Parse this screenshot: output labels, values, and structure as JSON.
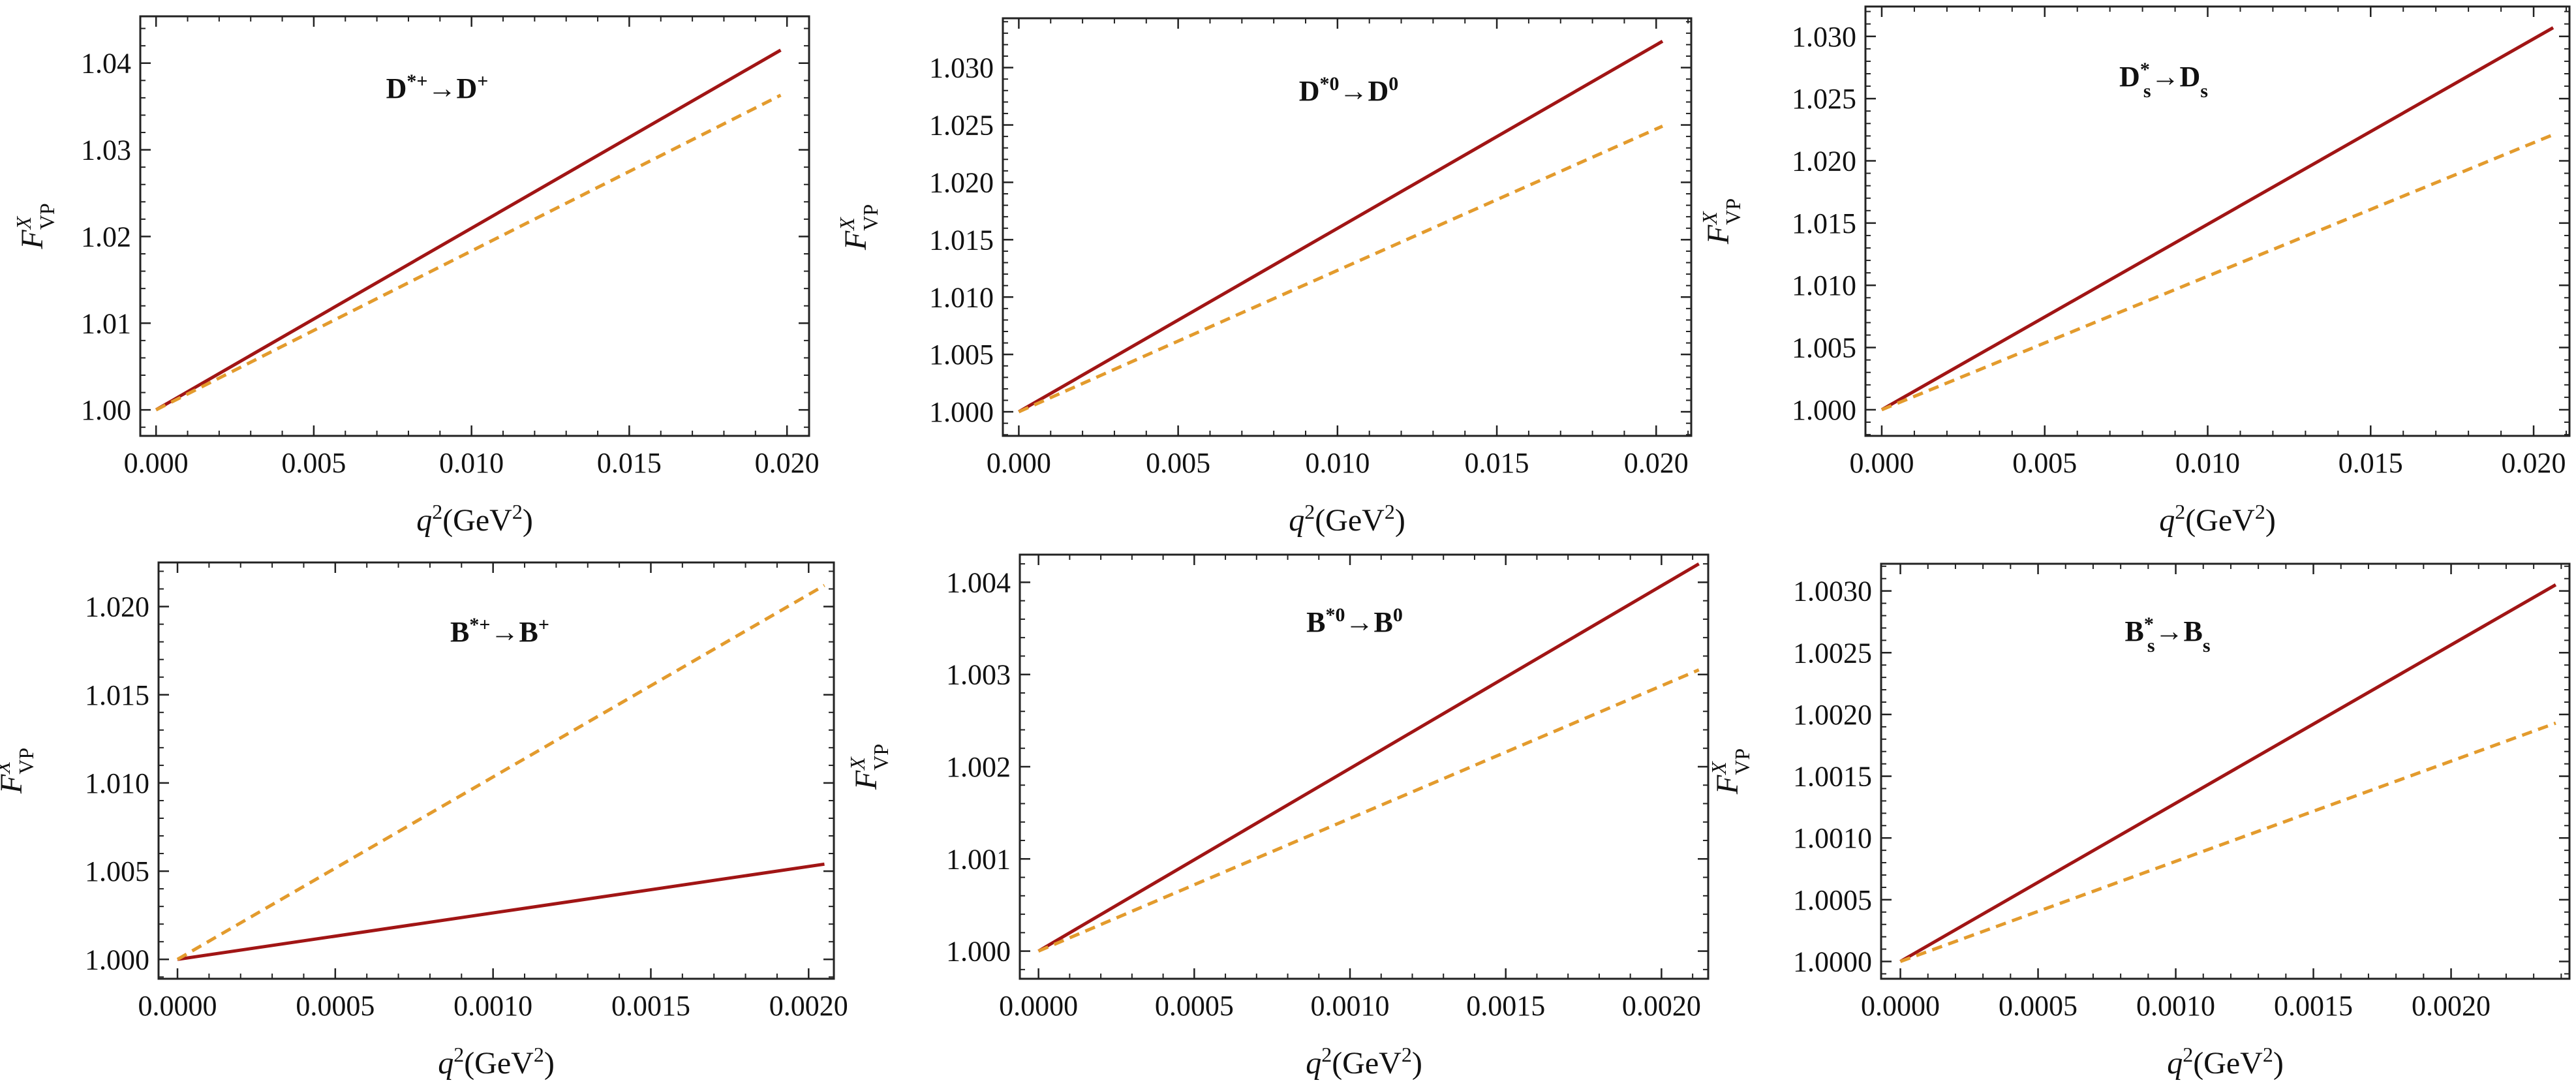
{
  "colors": {
    "solid": "#a11515",
    "dashed": "#e39b2d"
  },
  "chart_data": [
    {
      "type": "line",
      "title_parts": [
        "D",
        "*+",
        "",
        "→D",
        "+",
        ""
      ],
      "xlabel": "q²(GeV²)",
      "ylabel": "F_VP^X",
      "xlim": [
        -0.0005,
        0.0207
      ],
      "ylim": [
        0.997,
        1.0454
      ],
      "xticks": [
        0.0,
        0.005,
        0.01,
        0.015,
        0.02
      ],
      "xtick_labels": [
        "0.000",
        "0.005",
        "0.010",
        "0.015",
        "0.020"
      ],
      "yticks": [
        1.0,
        1.01,
        1.02,
        1.03,
        1.04
      ],
      "ytick_labels": [
        "1.00",
        "1.01",
        "1.02",
        "1.03",
        "1.04"
      ],
      "series": [
        {
          "name": "solid",
          "style": "solid",
          "x": [
            0.0,
            0.0198
          ],
          "y": [
            1.0,
            1.0415
          ]
        },
        {
          "name": "dashed",
          "style": "dashed",
          "x": [
            0.0,
            0.0198
          ],
          "y": [
            1.0,
            1.0363
          ]
        }
      ]
    },
    {
      "type": "line",
      "title_parts": [
        "D",
        "*0",
        "",
        "→D",
        "0",
        ""
      ],
      "xlabel": "q²(GeV²)",
      "ylabel": "F_VP^X",
      "xlim": [
        -0.0005,
        0.0211
      ],
      "ylim": [
        0.9979,
        1.0343
      ],
      "xticks": [
        0.0,
        0.005,
        0.01,
        0.015,
        0.02
      ],
      "xtick_labels": [
        "0.000",
        "0.005",
        "0.010",
        "0.015",
        "0.020"
      ],
      "yticks": [
        1.0,
        1.005,
        1.01,
        1.015,
        1.02,
        1.025,
        1.03
      ],
      "ytick_labels": [
        "1.000",
        "1.005",
        "1.010",
        "1.015",
        "1.020",
        "1.025",
        "1.030"
      ],
      "series": [
        {
          "name": "solid",
          "style": "solid",
          "x": [
            0.0,
            0.0202
          ],
          "y": [
            1.0,
            1.0323
          ]
        },
        {
          "name": "dashed",
          "style": "dashed",
          "x": [
            0.0,
            0.0202
          ],
          "y": [
            1.0,
            1.0249
          ]
        }
      ]
    },
    {
      "type": "line",
      "title_parts": [
        "D",
        "*",
        "s",
        "→D",
        "",
        "s"
      ],
      "xlabel": "q²(GeV²)",
      "ylabel": "F_VP^X",
      "xlim": [
        -0.0005,
        0.0211
      ],
      "ylim": [
        0.9979,
        1.0324
      ],
      "xticks": [
        0.0,
        0.005,
        0.01,
        0.015,
        0.02
      ],
      "xtick_labels": [
        "0.000",
        "0.005",
        "0.010",
        "0.015",
        "0.020"
      ],
      "yticks": [
        1.0,
        1.005,
        1.01,
        1.015,
        1.02,
        1.025,
        1.03
      ],
      "ytick_labels": [
        "1.000",
        "1.005",
        "1.010",
        "1.015",
        "1.020",
        "1.025",
        "1.030"
      ],
      "series": [
        {
          "name": "solid",
          "style": "solid",
          "x": [
            0.0,
            0.0206
          ],
          "y": [
            1.0,
            1.0307
          ]
        },
        {
          "name": "dashed",
          "style": "dashed",
          "x": [
            0.0,
            0.0206
          ],
          "y": [
            1.0,
            1.0221
          ]
        }
      ]
    },
    {
      "type": "line",
      "title_parts": [
        "B",
        "*+",
        "",
        "→B",
        "+",
        ""
      ],
      "xlabel": "q²(GeV²)",
      "ylabel": "F_VP^X",
      "xlim": [
        -6e-05,
        0.00208
      ],
      "ylim": [
        0.9989,
        1.0225
      ],
      "xticks": [
        0.0,
        0.0005,
        0.001,
        0.0015,
        0.002
      ],
      "xtick_labels": [
        "0.0000",
        "0.0005",
        "0.0010",
        "0.0015",
        "0.0020"
      ],
      "yticks": [
        1.0,
        1.005,
        1.01,
        1.015,
        1.02
      ],
      "ytick_labels": [
        "1.000",
        "1.005",
        "1.010",
        "1.015",
        "1.020"
      ],
      "series": [
        {
          "name": "solid",
          "style": "solid",
          "x": [
            0.0,
            0.00205
          ],
          "y": [
            1.0,
            1.0054
          ]
        },
        {
          "name": "dashed",
          "style": "dashed",
          "x": [
            0.0,
            0.00205
          ],
          "y": [
            1.0,
            1.0212
          ]
        }
      ]
    },
    {
      "type": "line",
      "title_parts": [
        "B",
        "*0",
        "",
        "→B",
        "0",
        ""
      ],
      "xlabel": "q²(GeV²)",
      "ylabel": "F_VP^X",
      "xlim": [
        -6e-05,
        0.00215
      ],
      "ylim": [
        0.9997,
        1.0043
      ],
      "xticks": [
        0.0,
        0.0005,
        0.001,
        0.0015,
        0.002
      ],
      "xtick_labels": [
        "0.0000",
        "0.0005",
        "0.0010",
        "0.0015",
        "0.0020"
      ],
      "yticks": [
        1.0,
        1.001,
        1.002,
        1.003,
        1.004
      ],
      "ytick_labels": [
        "1.000",
        "1.001",
        "1.002",
        "1.003",
        "1.004"
      ],
      "series": [
        {
          "name": "solid",
          "style": "solid",
          "x": [
            0.0,
            0.00212
          ],
          "y": [
            1.0,
            1.0042
          ]
        },
        {
          "name": "dashed",
          "style": "dashed",
          "x": [
            0.0,
            0.00212
          ],
          "y": [
            1.0,
            1.00305
          ]
        }
      ]
    },
    {
      "type": "line",
      "title_parts": [
        "B",
        "*",
        "s",
        "→B",
        "",
        "s"
      ],
      "xlabel": "q²(GeV²)",
      "ylabel": "F_VP^X",
      "xlim": [
        -7e-05,
        0.00243
      ],
      "ylim": [
        0.99986,
        1.00322
      ],
      "xticks": [
        0.0,
        0.0005,
        0.001,
        0.0015,
        0.002
      ],
      "xtick_labels": [
        "0.0000",
        "0.0005",
        "0.0010",
        "0.0015",
        "0.0020"
      ],
      "yticks": [
        1.0,
        1.0005,
        1.001,
        1.0015,
        1.002,
        1.0025,
        1.003
      ],
      "ytick_labels": [
        "1.0000",
        "1.0005",
        "1.0010",
        "1.0015",
        "1.0020",
        "1.0025",
        "1.0030"
      ],
      "series": [
        {
          "name": "solid",
          "style": "solid",
          "x": [
            0.0,
            0.00238
          ],
          "y": [
            1.0,
            1.00305
          ]
        },
        {
          "name": "dashed",
          "style": "dashed",
          "x": [
            0.0,
            0.00238
          ],
          "y": [
            1.0,
            1.00193
          ]
        }
      ]
    }
  ]
}
